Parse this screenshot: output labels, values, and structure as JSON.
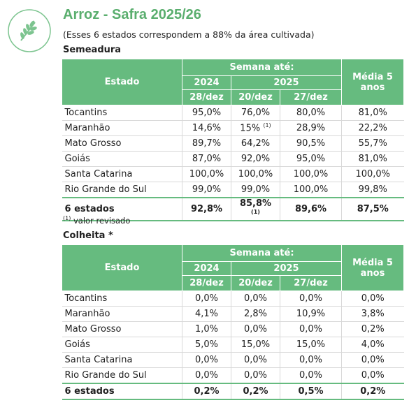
{
  "header": {
    "title": "Arroz - Safra 2025/26",
    "subtitle": "(Esses 6 estados correspondem a 88% da área cultivada)"
  },
  "tables": [
    {
      "title": "Semeadura",
      "columns": {
        "estado": "Estado",
        "semana": "Semana até:",
        "years": [
          "2024",
          "2025"
        ],
        "weeks": [
          "28/dez",
          "20/dez",
          "27/dez"
        ],
        "media": "Média 5 anos"
      },
      "rows": [
        [
          "Tocantins",
          "95,0%",
          "76,0%",
          "80,0%",
          "81,0%"
        ],
        [
          "Maranhão",
          "14,6%",
          {
            "text": "15%",
            "sup": "(1)"
          },
          "28,9%",
          "22,2%"
        ],
        [
          "Mato Grosso",
          "89,7%",
          "64,2%",
          "90,5%",
          "55,7%"
        ],
        [
          "Goiás",
          "87,0%",
          "92,0%",
          "95,0%",
          "81,0%"
        ],
        [
          "Santa Catarina",
          "100,0%",
          "100,0%",
          "100,0%",
          "100,0%"
        ],
        [
          "Rio Grande do Sul",
          "99,0%",
          "99,0%",
          "100,0%",
          "99,8%"
        ]
      ],
      "total": [
        "6 estados",
        "92,8%",
        {
          "text": "85,8%",
          "sup": "(1)"
        },
        "89,6%",
        "87,5%"
      ],
      "note": {
        "marker": "(1)",
        "text": "valor revisado"
      }
    },
    {
      "title": "Colheita *",
      "columns": {
        "estado": "Estado",
        "semana": "Semana até:",
        "years": [
          "2024",
          "2025"
        ],
        "weeks": [
          "28/dez",
          "20/dez",
          "27/dez"
        ],
        "media": "Média 5 anos"
      },
      "rows": [
        [
          "Tocantins",
          "0,0%",
          "0,0%",
          "0,0%",
          "0,0%"
        ],
        [
          "Maranhão",
          "4,1%",
          "2,8%",
          "10,9%",
          "3,8%"
        ],
        [
          "Mato Grosso",
          "1,0%",
          "0,0%",
          "0,0%",
          "0,2%"
        ],
        [
          "Goiás",
          "5,0%",
          "15,0%",
          "15,0%",
          "4,0%"
        ],
        [
          "Santa Catarina",
          "0,0%",
          "0,0%",
          "0,0%",
          "0,0%"
        ],
        [
          "Rio Grande do Sul",
          "0,0%",
          "0,0%",
          "0,0%",
          "0,0%"
        ]
      ],
      "total": [
        "6 estados",
        "0,2%",
        "0,2%",
        "0,5%",
        "0,2%"
      ]
    }
  ]
}
